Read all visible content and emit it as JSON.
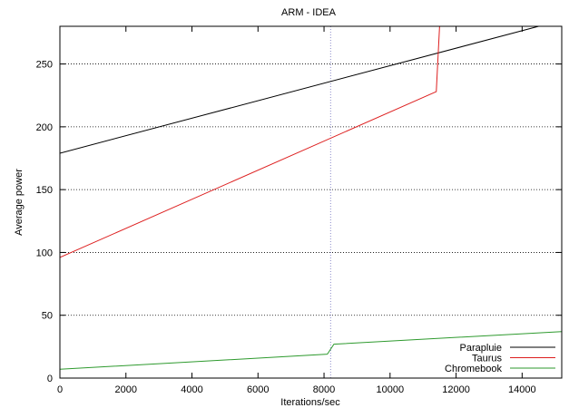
{
  "chart_data": {
    "type": "line",
    "title": "ARM - IDEA",
    "xlabel": "Iterations/sec",
    "ylabel": "Average power",
    "xlim": [
      0,
      15200
    ],
    "ylim": [
      0,
      280
    ],
    "xticks": [
      0,
      2000,
      4000,
      6000,
      8000,
      10000,
      12000,
      14000
    ],
    "yticks": [
      0,
      50,
      100,
      150,
      200,
      250
    ],
    "ytick_gridlines": [
      50,
      100,
      150,
      200,
      250
    ],
    "grid": "horizontal dotted",
    "vertical_marker": 8200,
    "legend_position": "bottom-right",
    "series": [
      {
        "name": "Parapluie",
        "color": "#000000",
        "points": [
          [
            0,
            179
          ],
          [
            14500,
            280
          ]
        ]
      },
      {
        "name": "Taurus",
        "color": "#dd1e1e",
        "points": [
          [
            0,
            96
          ],
          [
            11400,
            228
          ],
          [
            11500,
            280
          ]
        ]
      },
      {
        "name": "Chromebook",
        "color": "#2e9a2e",
        "points": [
          [
            0,
            7
          ],
          [
            8100,
            19
          ],
          [
            8300,
            27
          ],
          [
            15200,
            37
          ]
        ]
      }
    ]
  }
}
